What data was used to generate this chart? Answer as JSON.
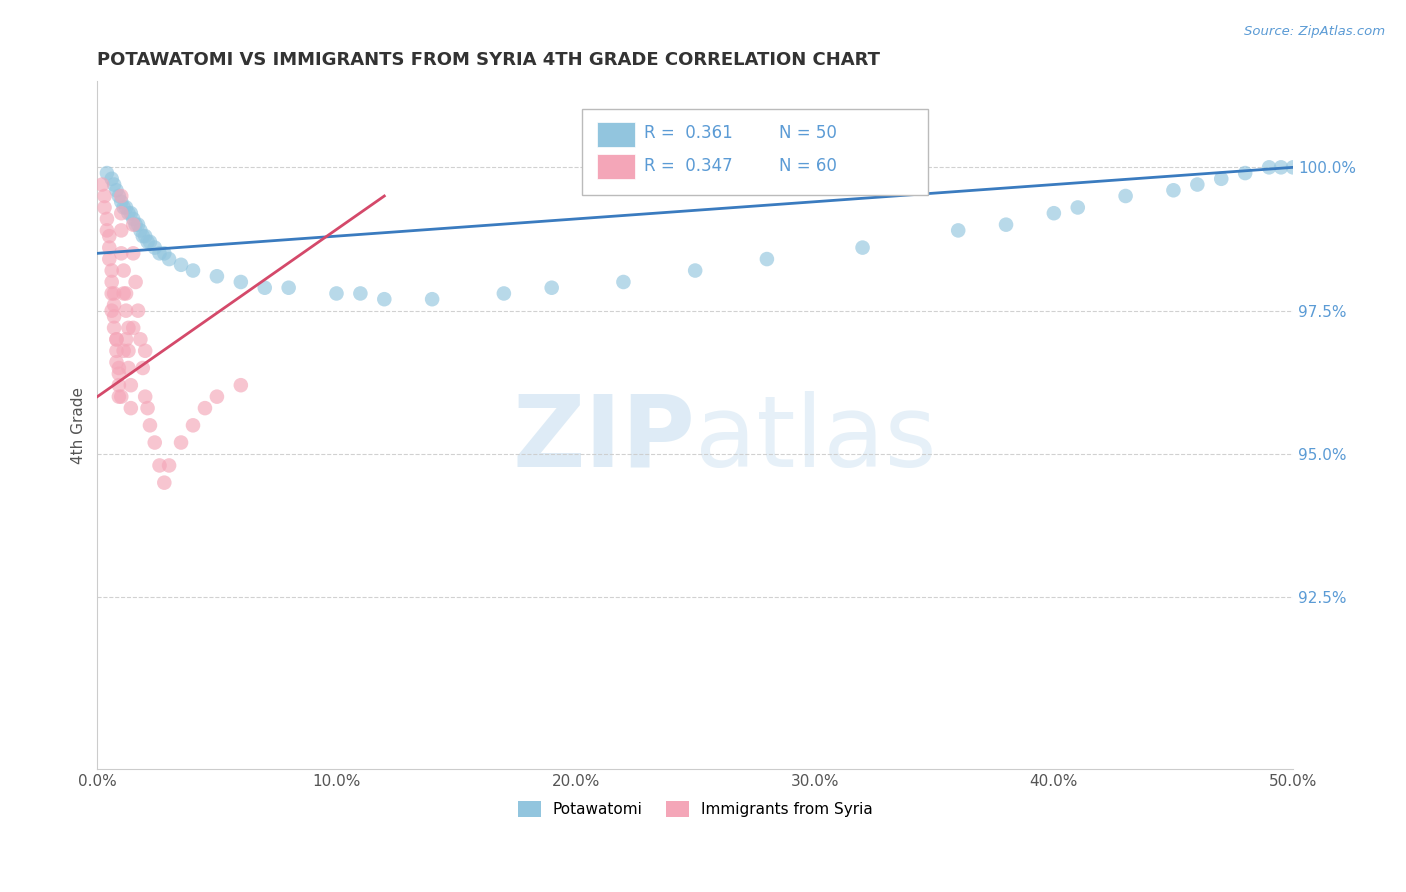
{
  "title": "POTAWATOMI VS IMMIGRANTS FROM SYRIA 4TH GRADE CORRELATION CHART",
  "source": "Source: ZipAtlas.com",
  "ylabel": "4th Grade",
  "xlim": [
    0.0,
    50.0
  ],
  "ylim": [
    89.5,
    101.5
  ],
  "yticks": [
    92.5,
    95.0,
    97.5,
    100.0
  ],
  "ytick_labels": [
    "92.5%",
    "95.0%",
    "97.5%",
    "100.0%"
  ],
  "xticks": [
    0.0,
    10.0,
    20.0,
    30.0,
    40.0,
    50.0
  ],
  "xtick_labels": [
    "0.0%",
    "10.0%",
    "20.0%",
    "30.0%",
    "40.0%",
    "50.0%"
  ],
  "blue_color": "#92c5de",
  "pink_color": "#f4a6b8",
  "blue_line_color": "#3a7bbf",
  "pink_line_color": "#d4496a",
  "blue_scatter_x": [
    0.4,
    0.6,
    0.7,
    0.8,
    0.9,
    1.0,
    1.1,
    1.2,
    1.3,
    1.4,
    1.5,
    1.6,
    1.7,
    1.8,
    1.9,
    2.0,
    2.1,
    2.2,
    2.4,
    2.6,
    2.8,
    3.0,
    3.5,
    4.0,
    5.0,
    6.0,
    7.0,
    8.0,
    10.0,
    11.0,
    12.0,
    14.0,
    17.0,
    19.0,
    22.0,
    25.0,
    28.0,
    32.0,
    36.0,
    38.0,
    40.0,
    41.0,
    43.0,
    45.0,
    46.0,
    47.0,
    48.0,
    49.0,
    49.5,
    50.0
  ],
  "blue_scatter_y": [
    99.9,
    99.8,
    99.7,
    99.6,
    99.5,
    99.4,
    99.3,
    99.3,
    99.2,
    99.2,
    99.1,
    99.0,
    99.0,
    98.9,
    98.8,
    98.8,
    98.7,
    98.7,
    98.6,
    98.5,
    98.5,
    98.4,
    98.3,
    98.2,
    98.1,
    98.0,
    97.9,
    97.9,
    97.8,
    97.8,
    97.7,
    97.7,
    97.8,
    97.9,
    98.0,
    98.2,
    98.4,
    98.6,
    98.9,
    99.0,
    99.2,
    99.3,
    99.5,
    99.6,
    99.7,
    99.8,
    99.9,
    100.0,
    100.0,
    100.0
  ],
  "pink_scatter_x": [
    0.2,
    0.3,
    0.3,
    0.4,
    0.4,
    0.5,
    0.5,
    0.5,
    0.6,
    0.6,
    0.6,
    0.7,
    0.7,
    0.7,
    0.8,
    0.8,
    0.8,
    0.9,
    0.9,
    0.9,
    1.0,
    1.0,
    1.0,
    1.0,
    1.1,
    1.1,
    1.2,
    1.2,
    1.3,
    1.3,
    1.4,
    1.4,
    1.5,
    1.5,
    1.6,
    1.7,
    1.8,
    1.9,
    2.0,
    2.1,
    2.2,
    2.4,
    2.6,
    2.8,
    3.0,
    3.5,
    4.0,
    4.5,
    5.0,
    6.0,
    1.2,
    1.5,
    2.0,
    1.0,
    0.8,
    0.6,
    0.7,
    0.9,
    1.1,
    1.3
  ],
  "pink_scatter_y": [
    99.7,
    99.5,
    99.3,
    99.1,
    98.9,
    98.8,
    98.6,
    98.4,
    98.2,
    98.0,
    97.8,
    97.6,
    97.4,
    97.2,
    97.0,
    96.8,
    96.6,
    96.4,
    96.2,
    96.0,
    99.5,
    99.2,
    98.9,
    98.5,
    98.2,
    97.8,
    97.5,
    97.0,
    96.8,
    96.5,
    96.2,
    95.8,
    99.0,
    98.5,
    98.0,
    97.5,
    97.0,
    96.5,
    96.0,
    95.8,
    95.5,
    95.2,
    94.8,
    94.5,
    94.8,
    95.2,
    95.5,
    95.8,
    96.0,
    96.2,
    97.8,
    97.2,
    96.8,
    96.0,
    97.0,
    97.5,
    97.8,
    96.5,
    96.8,
    97.2
  ]
}
